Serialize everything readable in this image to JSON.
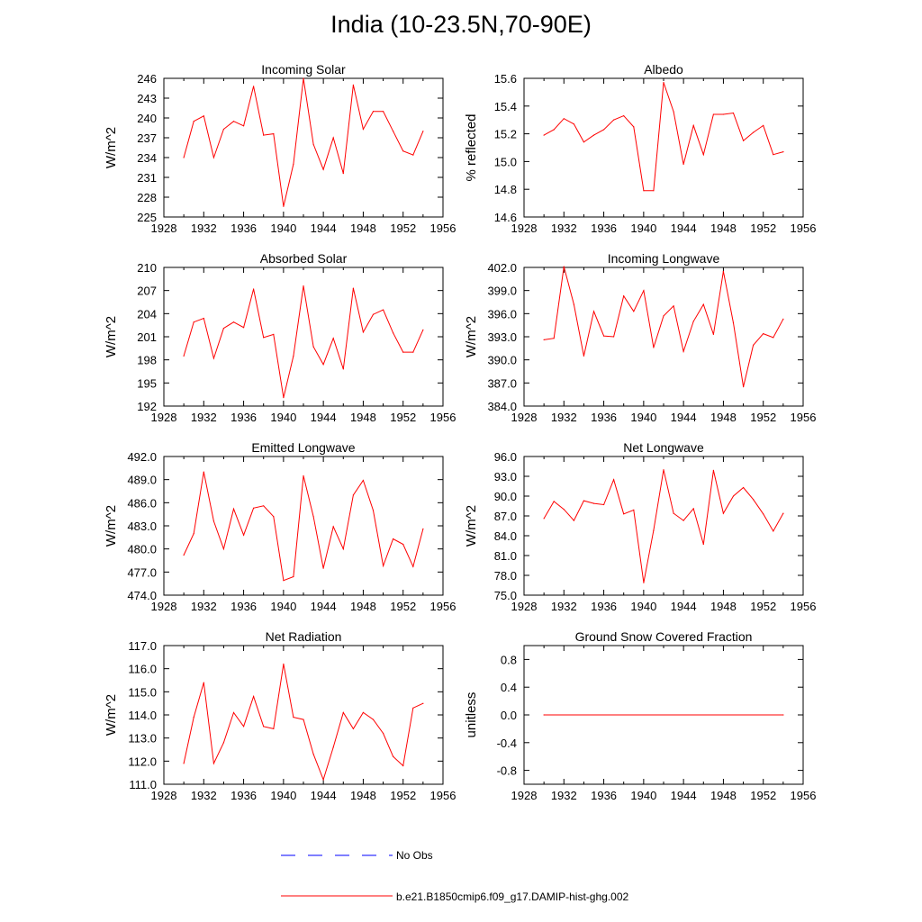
{
  "main_title": "India (10-23.5N,70-90E)",
  "colors": {
    "model": "#ff0000",
    "obs": "#0000ff",
    "axis": "#000000"
  },
  "legend": {
    "obs_label": "No Obs",
    "model_label": "b.e21.B1850cmip6.f09_g17.DAMIP-hist-ghg.002"
  },
  "chart_data": [
    {
      "type": "line",
      "title": "Incoming Solar",
      "ylabel": "W/m^2",
      "xlim": [
        1928,
        1956
      ],
      "ylim": [
        225,
        246
      ],
      "xticks": [
        "1928",
        "1932",
        "1936",
        "1940",
        "1944",
        "1948",
        "1952",
        "1956"
      ],
      "yticks": [
        "225",
        "228",
        "231",
        "234",
        "237",
        "240",
        "243",
        "246"
      ],
      "series": [
        {
          "x": [
            1930,
            1931,
            1932,
            1933,
            1934,
            1935,
            1936,
            1937,
            1938,
            1939,
            1940,
            1941,
            1942,
            1943,
            1944,
            1945,
            1946,
            1947,
            1948,
            1949,
            1950,
            1951,
            1952,
            1953,
            1954
          ],
          "y": [
            234.0,
            239.5,
            240.3,
            234.0,
            238.3,
            239.5,
            238.8,
            244.8,
            237.4,
            237.6,
            226.6,
            233.0,
            246.0,
            236.0,
            232.2,
            237.0,
            231.6,
            245.0,
            238.3,
            241.0,
            241.0,
            238.0,
            235.0,
            234.4,
            238.0
          ]
        }
      ]
    },
    {
      "type": "line",
      "title": "Albedo",
      "ylabel": "% reflected",
      "xlim": [
        1928,
        1956
      ],
      "ylim": [
        14.6,
        15.6
      ],
      "xticks": [
        "1928",
        "1932",
        "1936",
        "1940",
        "1944",
        "1948",
        "1952",
        "1956"
      ],
      "yticks": [
        "14.6",
        "14.8",
        "15.0",
        "15.2",
        "15.4",
        "15.6"
      ],
      "series": [
        {
          "x": [
            1930,
            1931,
            1932,
            1933,
            1934,
            1935,
            1936,
            1937,
            1938,
            1939,
            1940,
            1941,
            1942,
            1943,
            1944,
            1945,
            1946,
            1947,
            1948,
            1949,
            1950,
            1951,
            1952,
            1953,
            1954
          ],
          "y": [
            15.19,
            15.23,
            15.31,
            15.27,
            15.14,
            15.19,
            15.23,
            15.3,
            15.33,
            15.25,
            14.79,
            14.79,
            15.57,
            15.36,
            14.98,
            15.26,
            15.05,
            15.34,
            15.34,
            15.35,
            15.15,
            15.21,
            15.26,
            15.05,
            15.07
          ]
        }
      ]
    },
    {
      "type": "line",
      "title": "Absorbed Solar",
      "ylabel": "W/m^2",
      "xlim": [
        1928,
        1956
      ],
      "ylim": [
        192,
        210
      ],
      "xticks": [
        "1928",
        "1932",
        "1936",
        "1940",
        "1944",
        "1948",
        "1952",
        "1956"
      ],
      "yticks": [
        "192",
        "195",
        "198",
        "201",
        "204",
        "207",
        "210"
      ],
      "series": [
        {
          "x": [
            1930,
            1931,
            1932,
            1933,
            1934,
            1935,
            1936,
            1937,
            1938,
            1939,
            1940,
            1941,
            1942,
            1943,
            1944,
            1945,
            1946,
            1947,
            1948,
            1949,
            1950,
            1951,
            1952,
            1953,
            1954
          ],
          "y": [
            198.5,
            202.9,
            203.4,
            198.2,
            202.1,
            202.9,
            202.2,
            207.2,
            200.9,
            201.3,
            193.1,
            198.5,
            207.6,
            199.7,
            197.4,
            200.8,
            196.8,
            207.3,
            201.6,
            203.9,
            204.5,
            201.5,
            199.0,
            199.0,
            201.9
          ]
        }
      ]
    },
    {
      "type": "line",
      "title": "Incoming Longwave",
      "ylabel": "W/m^2",
      "xlim": [
        1928,
        1956
      ],
      "ylim": [
        384,
        402
      ],
      "xticks": [
        "1928",
        "1932",
        "1936",
        "1940",
        "1944",
        "1948",
        "1952",
        "1956"
      ],
      "yticks": [
        "384.0",
        "387.0",
        "390.0",
        "393.0",
        "396.0",
        "399.0",
        "402.0"
      ],
      "series": [
        {
          "x": [
            1930,
            1931,
            1932,
            1933,
            1934,
            1935,
            1936,
            1937,
            1938,
            1939,
            1940,
            1941,
            1942,
            1943,
            1944,
            1945,
            1946,
            1947,
            1948,
            1949,
            1950,
            1951,
            1952,
            1953,
            1954
          ],
          "y": [
            392.6,
            392.8,
            402.1,
            397.2,
            390.5,
            396.3,
            393.1,
            393.0,
            398.3,
            396.3,
            399.0,
            391.6,
            395.7,
            397.0,
            391.1,
            395.0,
            397.2,
            393.3,
            401.5,
            394.8,
            386.5,
            391.9,
            393.4,
            392.9,
            395.3
          ]
        }
      ]
    },
    {
      "type": "line",
      "title": "Emitted Longwave",
      "ylabel": "W/m^2",
      "xlim": [
        1928,
        1956
      ],
      "ylim": [
        474,
        492
      ],
      "xticks": [
        "1928",
        "1932",
        "1936",
        "1940",
        "1944",
        "1948",
        "1952",
        "1956"
      ],
      "yticks": [
        "474.0",
        "477.0",
        "480.0",
        "483.0",
        "486.0",
        "489.0",
        "492.0"
      ],
      "series": [
        {
          "x": [
            1930,
            1931,
            1932,
            1933,
            1934,
            1935,
            1936,
            1937,
            1938,
            1939,
            1940,
            1941,
            1942,
            1943,
            1944,
            1945,
            1946,
            1947,
            1948,
            1949,
            1950,
            1951,
            1952,
            1953,
            1954
          ],
          "y": [
            479.2,
            482.0,
            490.0,
            483.6,
            480.0,
            485.2,
            481.8,
            485.3,
            485.6,
            484.2,
            475.9,
            476.4,
            489.5,
            484.2,
            477.5,
            482.9,
            480.0,
            487.0,
            488.9,
            485.0,
            477.8,
            481.3,
            480.6,
            477.7,
            482.6
          ]
        }
      ]
    },
    {
      "type": "line",
      "title": "Net Longwave",
      "ylabel": "W/m^2",
      "xlim": [
        1928,
        1956
      ],
      "ylim": [
        75,
        96
      ],
      "xticks": [
        "1928",
        "1932",
        "1936",
        "1940",
        "1944",
        "1948",
        "1952",
        "1956"
      ],
      "yticks": [
        "75.0",
        "78.0",
        "81.0",
        "84.0",
        "87.0",
        "90.0",
        "93.0",
        "96.0"
      ],
      "series": [
        {
          "x": [
            1930,
            1931,
            1932,
            1933,
            1934,
            1935,
            1936,
            1937,
            1938,
            1939,
            1940,
            1941,
            1942,
            1943,
            1944,
            1945,
            1946,
            1947,
            1948,
            1949,
            1950,
            1951,
            1952,
            1953,
            1954
          ],
          "y": [
            86.6,
            89.2,
            88.0,
            86.3,
            89.3,
            88.9,
            88.7,
            92.5,
            87.3,
            87.9,
            76.9,
            84.8,
            94.0,
            87.4,
            86.3,
            88.1,
            82.7,
            93.9,
            87.4,
            90.0,
            91.3,
            89.5,
            87.3,
            84.7,
            87.4
          ]
        }
      ]
    },
    {
      "type": "line",
      "title": "Net Radiation",
      "ylabel": "W/m^2",
      "xlim": [
        1928,
        1956
      ],
      "ylim": [
        111,
        117
      ],
      "xticks": [
        "1928",
        "1932",
        "1936",
        "1940",
        "1944",
        "1948",
        "1952",
        "1956"
      ],
      "yticks": [
        "111.0",
        "112.0",
        "113.0",
        "114.0",
        "115.0",
        "116.0",
        "117.0"
      ],
      "series": [
        {
          "x": [
            1930,
            1931,
            1932,
            1933,
            1934,
            1935,
            1936,
            1937,
            1938,
            1939,
            1940,
            1941,
            1942,
            1943,
            1944,
            1945,
            1946,
            1947,
            1948,
            1949,
            1950,
            1951,
            1952,
            1953,
            1954
          ],
          "y": [
            111.9,
            113.9,
            115.4,
            111.9,
            112.8,
            114.1,
            113.5,
            114.8,
            113.5,
            113.4,
            116.2,
            113.9,
            113.8,
            112.3,
            111.2,
            112.6,
            114.1,
            113.4,
            114.1,
            113.8,
            113.2,
            112.2,
            111.8,
            114.3,
            114.5
          ]
        }
      ]
    },
    {
      "type": "line",
      "title": "Ground Snow Covered Fraction",
      "ylabel": "unitless",
      "xlim": [
        1928,
        1956
      ],
      "ylim": [
        -1.0,
        1.0
      ],
      "xticks": [
        "1928",
        "1932",
        "1936",
        "1940",
        "1944",
        "1948",
        "1952",
        "1956"
      ],
      "yticks": [
        "-0.8",
        "-0.4",
        "0.0",
        "0.4",
        "0.8"
      ],
      "series": [
        {
          "x": [
            1930,
            1954
          ],
          "y": [
            0.0,
            0.0
          ]
        }
      ]
    }
  ]
}
